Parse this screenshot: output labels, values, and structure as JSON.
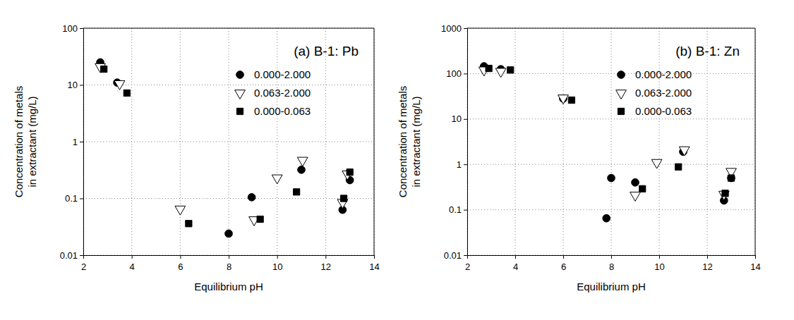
{
  "chart_data": [
    {
      "type": "scatter",
      "title": "(a) B-1: Pb",
      "xlabel": "Equilibrium pH",
      "ylabel": [
        "Concentration of metals",
        "in extractant (mg/L)"
      ],
      "log": "y",
      "grid": true,
      "legend": "upper right",
      "xlim": [
        2,
        14
      ],
      "xticks": [
        2,
        4,
        6,
        8,
        10,
        12,
        14
      ],
      "ylim": [
        0.01,
        100
      ],
      "yticks": [
        0.01,
        0.1,
        1,
        10,
        100
      ],
      "series": [
        {
          "name": "0.000-2.000",
          "color": "#000000",
          "marker": "circle",
          "x": [
            2.7,
            3.4,
            8.0,
            8.95,
            11.0,
            12.7,
            13.0
          ],
          "values": [
            25,
            11,
            0.024,
            0.105,
            0.32,
            0.063,
            0.21
          ]
        },
        {
          "name": "0.063-2.000",
          "color": "#000000",
          "marker": "triangle-down-open",
          "x": [
            2.7,
            3.5,
            6.0,
            9.05,
            10.0,
            11.05,
            12.7,
            12.9
          ],
          "values": [
            21,
            10.5,
            0.065,
            0.042,
            0.23,
            0.47,
            0.085,
            0.27
          ]
        },
        {
          "name": "0.000-0.063",
          "color": "#000000",
          "marker": "square",
          "x": [
            2.85,
            3.8,
            6.35,
            9.3,
            10.8,
            12.75,
            13.0
          ],
          "values": [
            19,
            7.2,
            0.036,
            0.043,
            0.13,
            0.1,
            0.29
          ]
        }
      ]
    },
    {
      "type": "scatter",
      "title": "(b) B-1: Zn",
      "xlabel": "Equilibrium pH",
      "ylabel": [
        "Concentration of metals",
        "in extractant (mg/L)"
      ],
      "log": "y",
      "grid": true,
      "legend": "upper right",
      "xlim": [
        2,
        14
      ],
      "xticks": [
        2,
        4,
        6,
        8,
        10,
        12,
        14
      ],
      "ylim": [
        0.01,
        1000
      ],
      "yticks": [
        0.01,
        0.1,
        1,
        10,
        100,
        1000
      ],
      "series": [
        {
          "name": "0.000-2.000",
          "color": "#000000",
          "marker": "circle",
          "x": [
            2.7,
            3.4,
            6.0,
            7.8,
            8.0,
            9.0,
            11.0,
            12.7,
            13.0
          ],
          "values": [
            145,
            125,
            28,
            0.065,
            0.5,
            0.4,
            1.9,
            0.16,
            0.5
          ]
        },
        {
          "name": "0.063-2.000",
          "color": "#000000",
          "marker": "triangle-down-open",
          "x": [
            2.7,
            3.4,
            6.0,
            9.0,
            9.9,
            11.05,
            12.7,
            13.0
          ],
          "values": [
            120,
            112,
            29,
            0.21,
            1.1,
            2.1,
            0.22,
            0.7
          ]
        },
        {
          "name": "0.000-0.063",
          "color": "#000000",
          "marker": "square",
          "x": [
            2.9,
            3.8,
            6.35,
            9.3,
            10.8,
            12.75,
            13.0
          ],
          "values": [
            130,
            120,
            26,
            0.29,
            0.88,
            0.23,
            0.5
          ]
        }
      ]
    }
  ]
}
